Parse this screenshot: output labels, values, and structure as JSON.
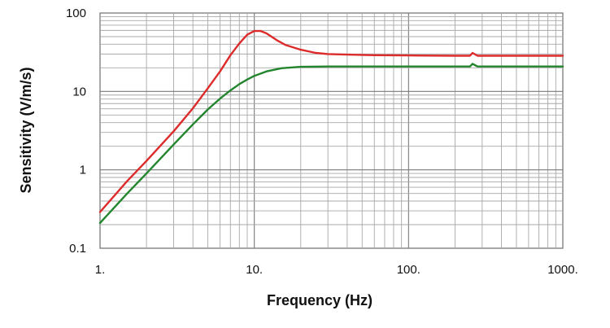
{
  "chart_data": {
    "type": "line",
    "title": "",
    "xlabel": "Frequency (Hz)",
    "ylabel": "Sensitivity (V/m/s)",
    "xscale": "log",
    "yscale": "log",
    "xlim": [
      1,
      1000
    ],
    "ylim": [
      0.1,
      100
    ],
    "grid": true,
    "x_ticks": [
      {
        "value": 1,
        "label": "1."
      },
      {
        "value": 10,
        "label": "10."
      },
      {
        "value": 100,
        "label": "100."
      },
      {
        "value": 1000,
        "label": "1000."
      }
    ],
    "y_ticks": [
      {
        "value": 0.1,
        "label": "0.1"
      },
      {
        "value": 1,
        "label": "1"
      },
      {
        "value": 10,
        "label": "10"
      },
      {
        "value": 100,
        "label": "100"
      }
    ],
    "series": [
      {
        "color": "#dd2b2b",
        "x": [
          1,
          1.5,
          2,
          3,
          4,
          5,
          6,
          7,
          8,
          9,
          10,
          11,
          12,
          14,
          16,
          20,
          25,
          30,
          40,
          60,
          100,
          200,
          250,
          260,
          280,
          400,
          700,
          1000
        ],
        "y": [
          0.29,
          0.72,
          1.3,
          3.1,
          6.1,
          11,
          18,
          29,
          41,
          53,
          59,
          59,
          55,
          45,
          39,
          34,
          31,
          30,
          29.5,
          29,
          28.8,
          28.5,
          28.5,
          31,
          28.5,
          28.5,
          28.5,
          28.5
        ]
      },
      {
        "color": "#23862e",
        "x": [
          1,
          1.5,
          2,
          3,
          4,
          5,
          6,
          7,
          8,
          9,
          10,
          12,
          15,
          20,
          30,
          50,
          100,
          200,
          250,
          260,
          280,
          400,
          700,
          1000
        ],
        "y": [
          0.21,
          0.5,
          0.9,
          2.1,
          3.8,
          5.9,
          8.1,
          10.3,
          12.4,
          14.2,
          15.8,
          18,
          19.8,
          20.6,
          20.8,
          20.8,
          20.8,
          20.8,
          20.8,
          22.5,
          20.8,
          20.8,
          20.8,
          20.8
        ]
      }
    ]
  }
}
